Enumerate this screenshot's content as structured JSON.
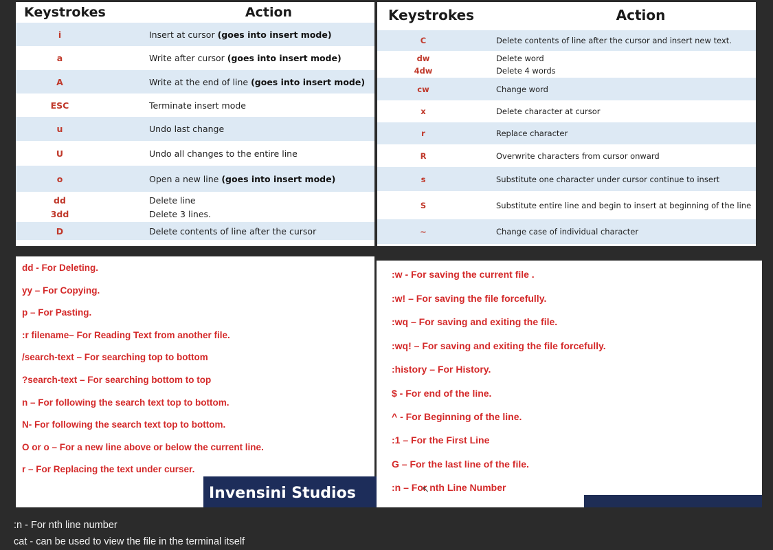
{
  "table1": {
    "header_keystrokes": "Keystrokes",
    "header_action": "Action",
    "rows": [
      {
        "key": "i",
        "key2": "",
        "action": "Insert at cursor ",
        "bold": "(goes into insert mode)",
        "action2": ""
      },
      {
        "key": "a",
        "key2": "",
        "action": "Write after cursor ",
        "bold": "(goes into insert mode)",
        "action2": ""
      },
      {
        "key": "A",
        "key2": "",
        "action": "Write at the end of line ",
        "bold": "(goes into insert mode)",
        "action2": ""
      },
      {
        "key": "ESC",
        "key2": "",
        "action": "Terminate insert mode",
        "bold": "",
        "action2": ""
      },
      {
        "key": "u",
        "key2": "",
        "action": "Undo last change",
        "bold": "",
        "action2": ""
      },
      {
        "key": "U",
        "key2": "",
        "action": "Undo all changes to the entire line",
        "bold": "",
        "action2": ""
      },
      {
        "key": "o",
        "key2": "",
        "action": "Open a new line ",
        "bold": "(goes into insert mode)",
        "action2": ""
      },
      {
        "key": "dd",
        "key2": "3dd",
        "action": "Delete line",
        "bold": "",
        "action2": "Delete 3 lines."
      },
      {
        "key": "D",
        "key2": "",
        "action": "Delete contents of line after the cursor",
        "bold": "",
        "action2": ""
      }
    ]
  },
  "table2": {
    "header_keystrokes": "Keystrokes",
    "header_action": "Action",
    "rows": [
      {
        "key": "C",
        "key2": "",
        "action": "Delete contents of line after the cursor and insert new text.",
        "action2": ""
      },
      {
        "key": "dw",
        "key2": "4dw",
        "action": "Delete word",
        "action2": "Delete 4 words"
      },
      {
        "key": "cw",
        "key2": "",
        "action": "Change word",
        "action2": ""
      },
      {
        "key": "x",
        "key2": "",
        "action": "Delete character at cursor",
        "action2": ""
      },
      {
        "key": "r",
        "key2": "",
        "action": "Replace character",
        "action2": ""
      },
      {
        "key": "R",
        "key2": "",
        "action": "Overwrite characters from cursor onward",
        "action2": ""
      },
      {
        "key": "s",
        "key2": "",
        "action": "Substitute one character under cursor continue to insert",
        "action2": ""
      },
      {
        "key": "S",
        "key2": "",
        "action": "Substitute entire line and begin to insert at beginning of the line",
        "action2": ""
      },
      {
        "key": "~",
        "key2": "",
        "action": "Change case of individual character",
        "action2": ""
      }
    ]
  },
  "notes_left": [
    "dd  - For Deleting.",
    "yy – For Copying.",
    "p –  For Pasting.",
    ":r  filename– For Reading Text from another file.",
    "/search-text – For searching top to bottom",
    "?search-text – For searching bottom to top",
    "n – For following the search text top to bottom.",
    "N-  For following the search text top to bottom.",
    "O or o – For a new line above or below the current line.",
    "r – For Replacing the text under curser."
  ],
  "notes_right": [
    ":w   - For saving the current file .",
    ":w! – For  saving the file forcefully.",
    ":wq – For saving and exiting the file.",
    ":wq! – For saving and exiting the file forcefully.",
    ":history – For History.",
    "$ - For end of the line.",
    "^ - For Beginning of the line.",
    ":1 – For the First Line",
    "G – For the last line of the file.",
    ":n – For nth  Line Number"
  ],
  "logo": "Invensini Studios",
  "bottom": {
    "line1": ":n - For nth line number",
    "line2": "cat - can be used to view the file in the terminal itself"
  },
  "icons": {
    "cursor": "mouse-cursor-icon"
  },
  "colors": {
    "background": "#2b2b2b",
    "row_alt": "#dde9f4",
    "key_red": "#c0392b",
    "note_red": "#d42a2a",
    "logo_bg": "#1d2d5a"
  }
}
